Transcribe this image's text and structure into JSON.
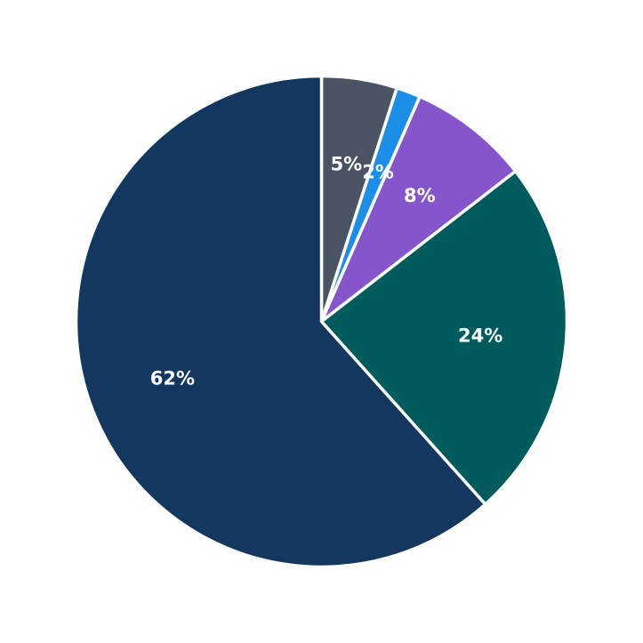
{
  "chart_data": {
    "type": "pie",
    "title": "",
    "start": "top, clockwise",
    "slices": [
      {
        "value": 5,
        "label": "5%",
        "color": "#4a5463"
      },
      {
        "value": 1.6,
        "label": "2%",
        "color": "#1b8ee8"
      },
      {
        "value": 8,
        "label": "8%",
        "color": "#8555cc"
      },
      {
        "value": 24,
        "label": "24%",
        "color": "#005c5c"
      },
      {
        "value": 62,
        "label": "62%",
        "color": "#14375f"
      }
    ]
  }
}
